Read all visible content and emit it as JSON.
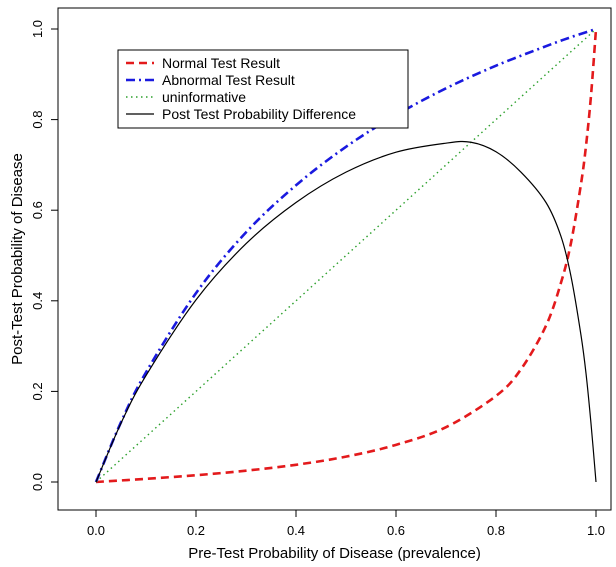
{
  "chart_data": {
    "type": "line",
    "title": "",
    "xlabel": "Pre-Test Probability of Disease (prevalence)",
    "ylabel": "Post-Test Probability of Disease",
    "xlim": [
      0,
      1
    ],
    "ylim": [
      0,
      1
    ],
    "x_ticks": [
      "0.0",
      "0.2",
      "0.4",
      "0.6",
      "0.8",
      "1.0"
    ],
    "y_ticks": [
      "0.0",
      "0.2",
      "0.4",
      "0.6",
      "0.8",
      "1.0"
    ],
    "grid": false,
    "legend_position": "top-left",
    "series": [
      {
        "name": "Normal Test Result",
        "color": "#e31a1c",
        "style": "dashed",
        "x": [
          0,
          0.1,
          0.2,
          0.3,
          0.4,
          0.5,
          0.6,
          0.7,
          0.8,
          0.85,
          0.9,
          0.93,
          0.95,
          0.97,
          0.98,
          0.99,
          1.0
        ],
        "y": [
          0,
          0.007,
          0.015,
          0.025,
          0.038,
          0.056,
          0.082,
          0.121,
          0.19,
          0.249,
          0.345,
          0.44,
          0.528,
          0.658,
          0.742,
          0.853,
          1.0
        ]
      },
      {
        "name": "Abnormal Test Result",
        "color": "#1a1adf",
        "style": "dashdot",
        "x": [
          0,
          0.05,
          0.1,
          0.2,
          0.3,
          0.4,
          0.5,
          0.6,
          0.7,
          0.8,
          0.9,
          0.95,
          1.0
        ],
        "y": [
          0,
          0.132,
          0.242,
          0.417,
          0.551,
          0.655,
          0.74,
          0.81,
          0.869,
          0.919,
          0.962,
          0.982,
          1.0
        ]
      },
      {
        "name": "uninformative",
        "color": "#2ca02c",
        "style": "dotted",
        "x": [
          0,
          1
        ],
        "y": [
          0,
          1
        ]
      },
      {
        "name": "Post Test Probability Difference",
        "color": "#000000",
        "style": "solid",
        "x": [
          0,
          0.05,
          0.1,
          0.2,
          0.3,
          0.4,
          0.5,
          0.6,
          0.7,
          0.75,
          0.8,
          0.85,
          0.9,
          0.93,
          0.95,
          0.97,
          0.98,
          0.99,
          1.0
        ],
        "y": [
          0,
          0.13,
          0.235,
          0.402,
          0.526,
          0.617,
          0.684,
          0.728,
          0.748,
          0.75,
          0.729,
          0.684,
          0.617,
          0.542,
          0.454,
          0.324,
          0.24,
          0.129,
          0.0
        ]
      }
    ]
  }
}
